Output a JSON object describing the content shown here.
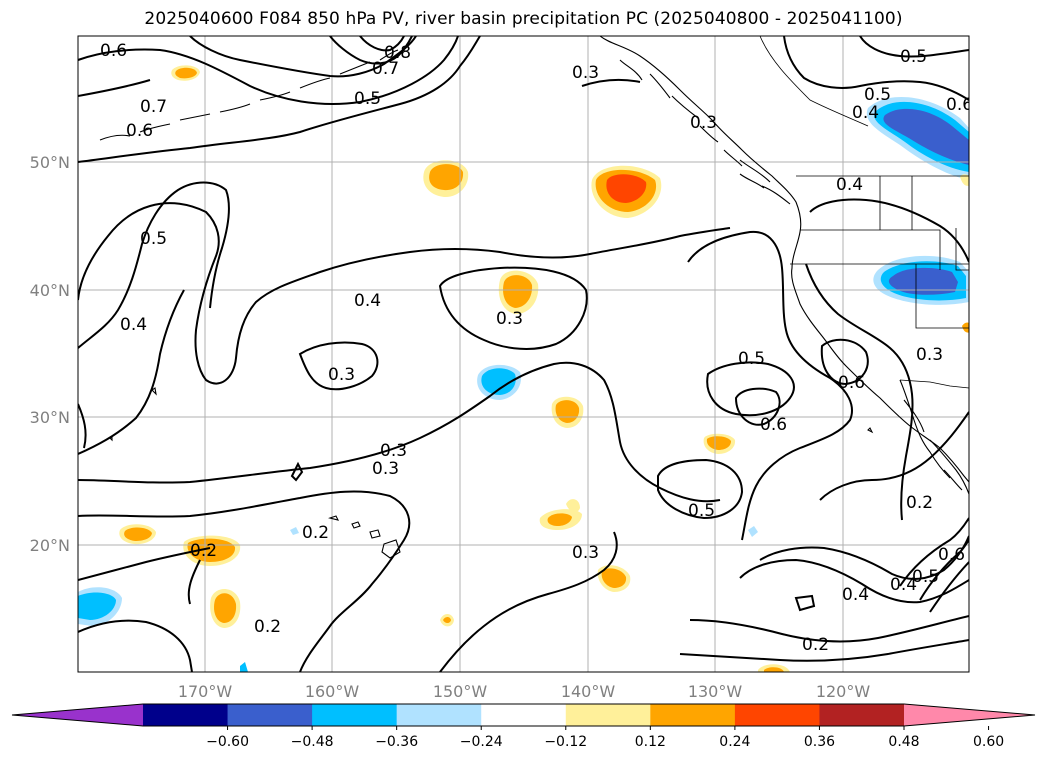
{
  "title": "2025040600 F084 850 hPa PV, river basin precipitation PC (2025040800 - 2025041100)",
  "lat_labels": [
    "50°N",
    "40°N",
    "30°N",
    "20°N"
  ],
  "lon_labels": [
    "170°W",
    "160°W",
    "150°W",
    "140°W",
    "130°W",
    "120°W"
  ],
  "contour_labels": [
    "0.6",
    "0.8",
    "0.7",
    "0.5",
    "0.3",
    "0.5",
    "0.4",
    "0.6",
    "0.7",
    "0.6",
    "0.5",
    "0.5",
    "0.4",
    "0.4",
    "0.3",
    "0.4",
    "0.3",
    "0.3",
    "0.5",
    "0.6",
    "0.6",
    "0.3",
    "0.2",
    "0.5",
    "0.2",
    "0.3",
    "0.2",
    "0.3",
    "0.2",
    "0.4",
    "0.5",
    "0.6",
    "0.4",
    "0.2",
    "0.3"
  ],
  "colorbar": {
    "ticks": [
      "−0.60",
      "−0.48",
      "−0.36",
      "−0.24",
      "−0.12",
      "0.12",
      "0.24",
      "0.36",
      "0.48",
      "0.60"
    ],
    "colors": [
      "#9932cc",
      "#00008b",
      "#3a5fcd",
      "#00bfff",
      "#b0e2ff",
      "#ffffff",
      "#fff09a",
      "#ffa500",
      "#ff4500",
      "#b22222",
      "#ff88aa"
    ]
  },
  "palette": {
    "orange": "#ffa500",
    "light_yellow": "#fff09a",
    "red_orange": "#ff4500",
    "sky": "#00bfff",
    "light_sky": "#b0e2ff",
    "royal": "#3a5fcd"
  }
}
